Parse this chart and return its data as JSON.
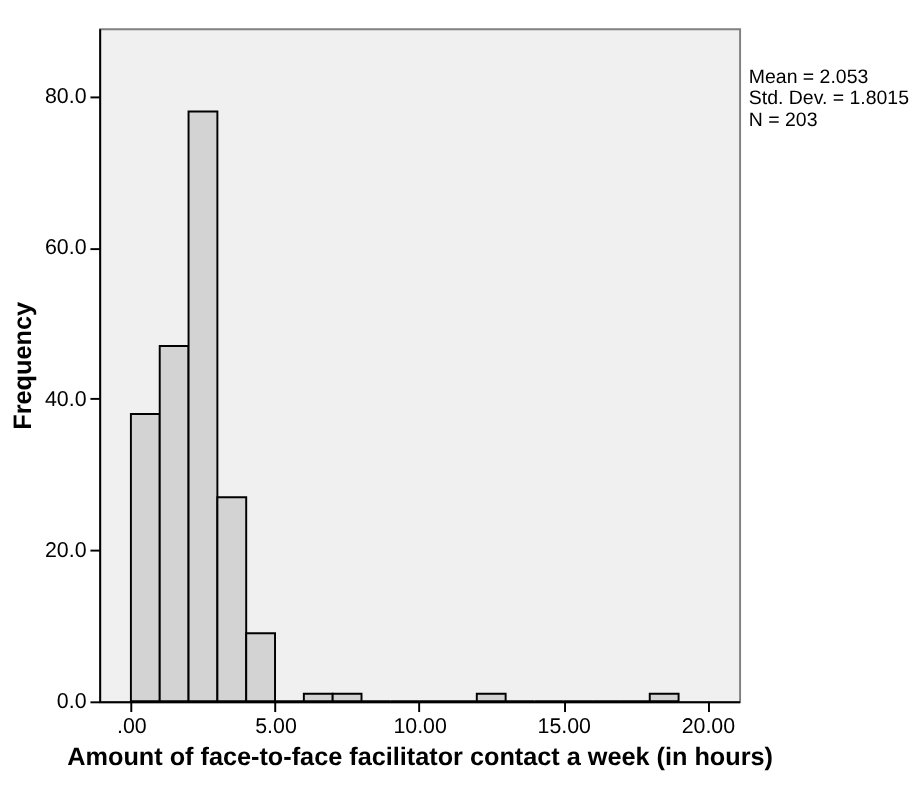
{
  "chart_data": {
    "type": "histogram",
    "xlabel": "Amount of face-to-face facilitator contact a week (in hours)",
    "ylabel": "Frequency",
    "bins": [
      0,
      1,
      2,
      3,
      4,
      5,
      6,
      7,
      8,
      9,
      10,
      11,
      12,
      13,
      14,
      15,
      16,
      17,
      18,
      19
    ],
    "values": [
      38,
      47,
      78,
      27,
      9,
      0,
      1,
      1,
      0,
      0,
      0,
      0,
      1,
      0,
      0,
      0,
      0,
      0,
      1
    ],
    "color": "#d3d3d3",
    "xlim": [
      -1.1,
      21.1
    ],
    "xticks": [
      {
        "value": 0,
        "label": ".00"
      },
      {
        "value": 5,
        "label": "5.00"
      },
      {
        "value": 10,
        "label": "10.00"
      },
      {
        "value": 15,
        "label": "15.00"
      },
      {
        "value": 20,
        "label": "20.00"
      }
    ],
    "ylim": [
      0,
      89
    ],
    "yticks": [
      {
        "value": 0,
        "label": "0.0"
      },
      {
        "value": 20,
        "label": "20.0"
      },
      {
        "value": 40,
        "label": "40.0"
      },
      {
        "value": 60,
        "label": "60.0"
      },
      {
        "value": 80,
        "label": "80.0"
      }
    ],
    "grid": false,
    "annotations": [
      "Mean = 2.053",
      "Std. Dev. = 1.8015",
      "N = 203"
    ]
  }
}
